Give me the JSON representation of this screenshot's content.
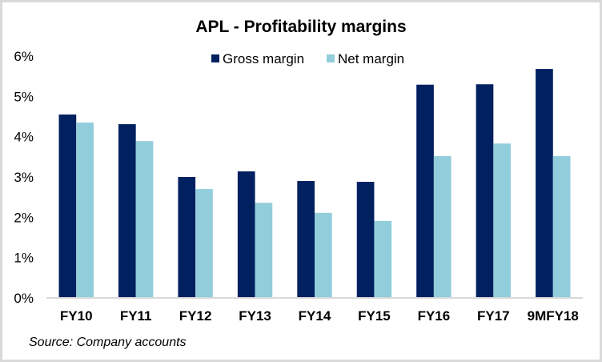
{
  "chart_data": {
    "type": "bar",
    "title": "APL - Profitability margins",
    "xlabel": "",
    "ylabel": "",
    "categories": [
      "FY10",
      "FY11",
      "FY12",
      "FY13",
      "FY14",
      "FY15",
      "FY16",
      "FY17",
      "9MFY18"
    ],
    "series": [
      {
        "name": "Gross margin",
        "color": "#002060",
        "values": [
          4.55,
          4.31,
          3.0,
          3.14,
          2.9,
          2.88,
          5.29,
          5.3,
          5.68
        ]
      },
      {
        "name": "Net margin",
        "color": "#92cddc",
        "values": [
          4.35,
          3.89,
          2.7,
          2.36,
          2.11,
          1.91,
          3.52,
          3.83,
          3.52
        ]
      }
    ],
    "ylim": [
      0,
      6
    ],
    "yticks": [
      0,
      1,
      2,
      3,
      4,
      5,
      6
    ],
    "ytick_labels": [
      "0%",
      "1%",
      "2%",
      "3%",
      "4%",
      "5%",
      "6%"
    ],
    "grid": false,
    "legend_position": "top-center",
    "source_note": "Source: Company accounts"
  }
}
